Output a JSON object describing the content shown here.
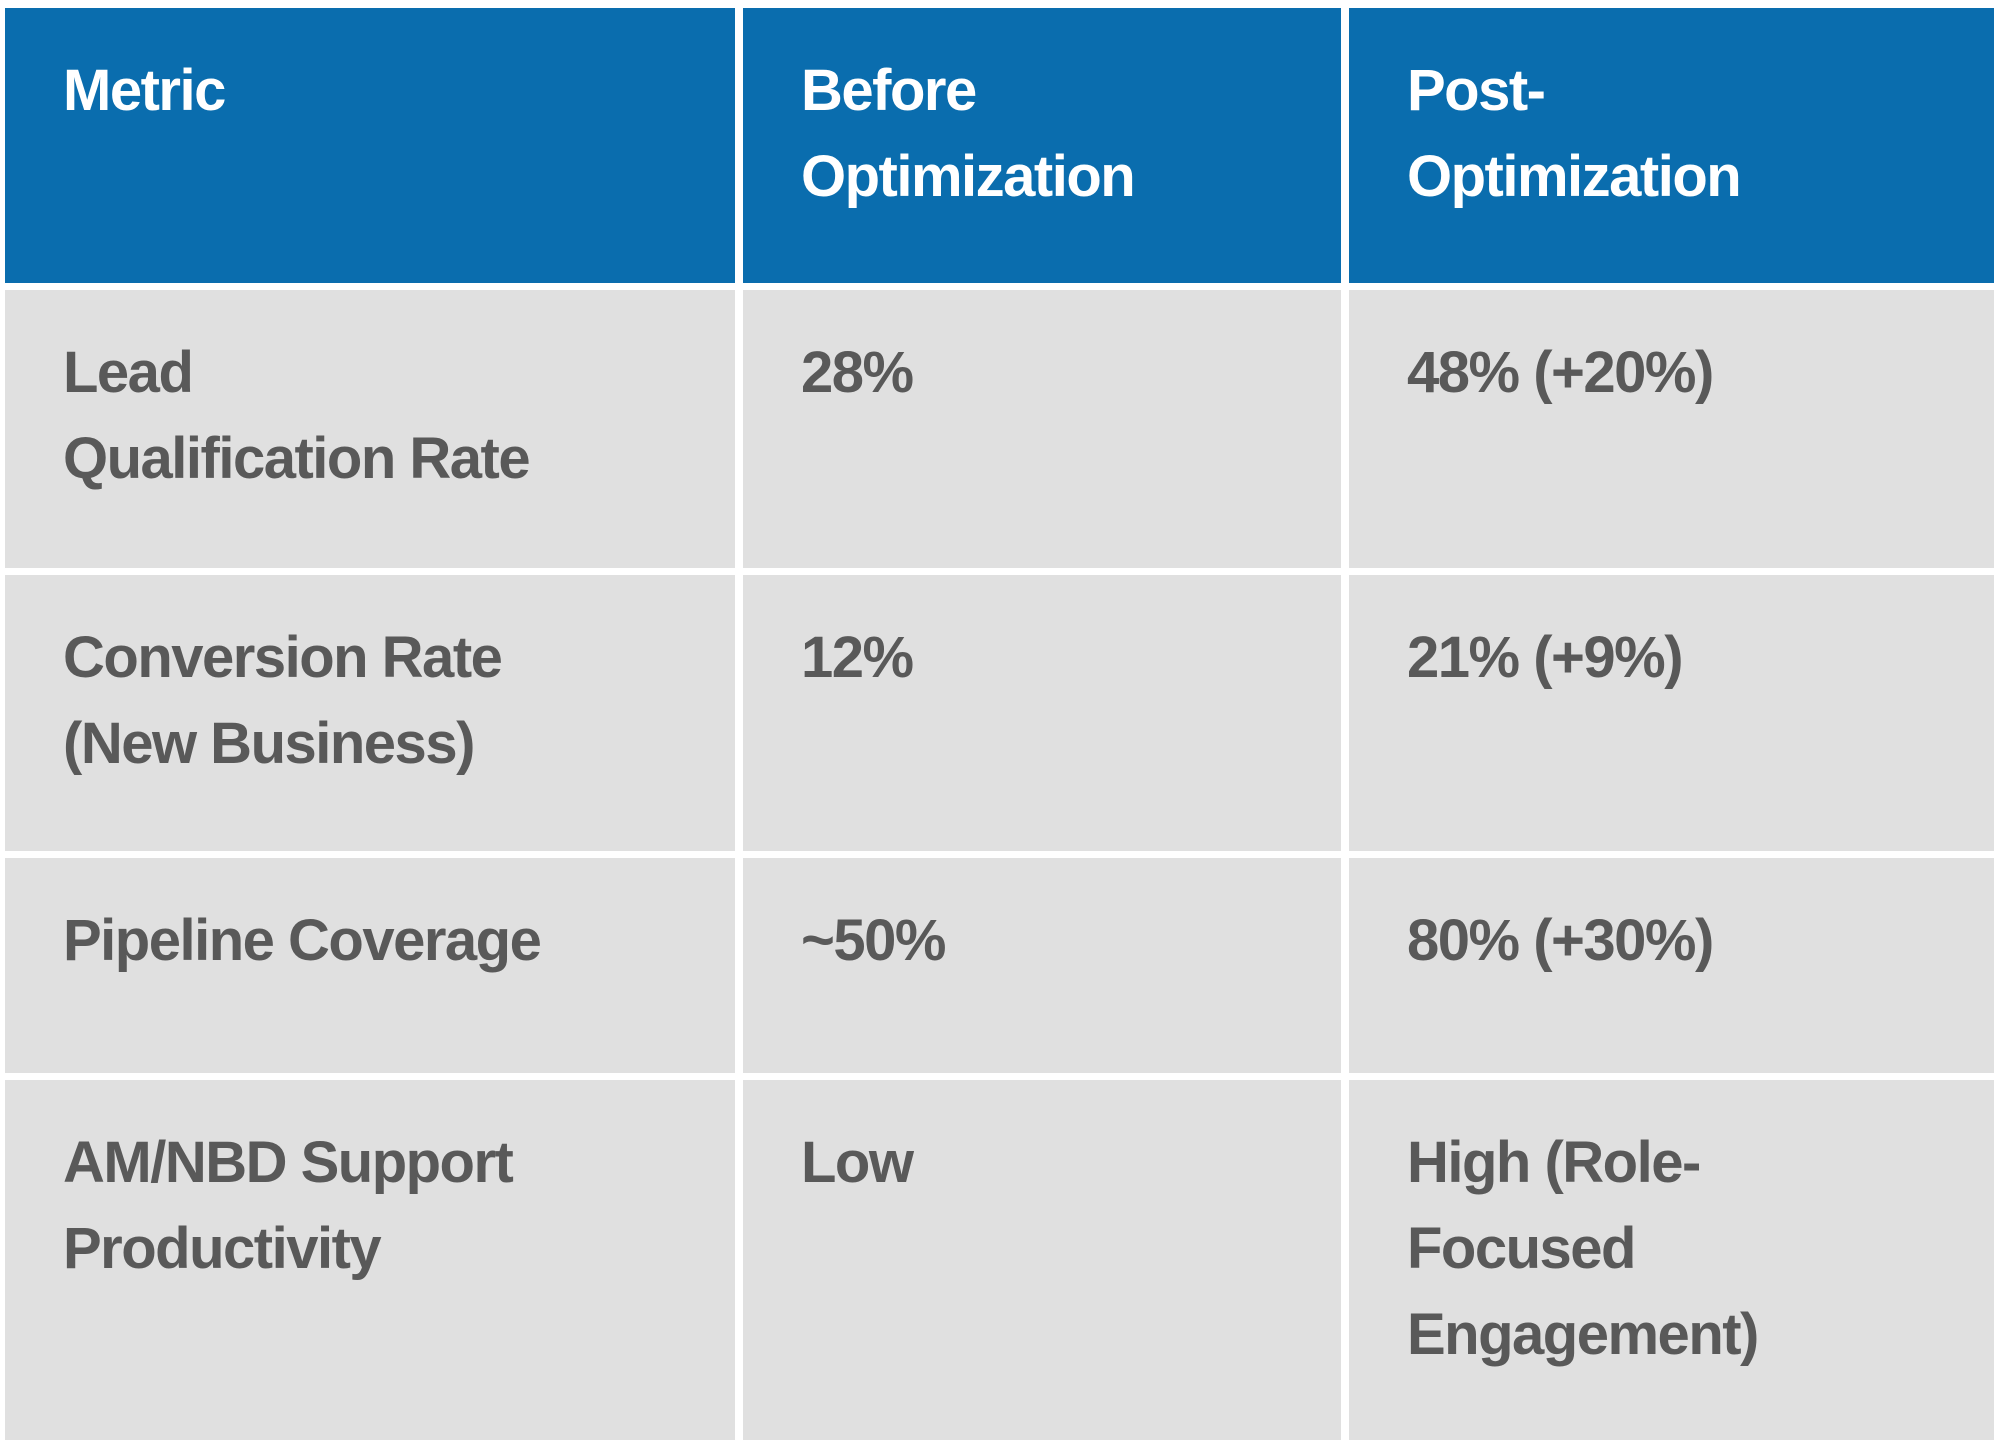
{
  "table": {
    "colors": {
      "header_bg": "#0A6DAE",
      "header_text": "#FFFFFF",
      "body_bg": "#E0E0E0",
      "body_text": "#595959",
      "divider": "#FFFFFF"
    },
    "columns": [
      {
        "label": "Metric"
      },
      {
        "label": "Before\nOptimization"
      },
      {
        "label": "Post-\nOptimization"
      }
    ],
    "rows": [
      {
        "metric": "Lead\nQualification Rate",
        "before": "28%",
        "post": "48% (+20%)"
      },
      {
        "metric": "Conversion Rate\n(New Business)",
        "before": "12%",
        "post": "21% (+9%)"
      },
      {
        "metric": "Pipeline Coverage",
        "before": "~50%",
        "post": "80% (+30%)"
      },
      {
        "metric": "AM/NBD Support\nProductivity",
        "before": "Low",
        "post": "High (Role-\nFocused\nEngagement)"
      }
    ]
  },
  "chart_data": {
    "type": "table",
    "columns": [
      "Metric",
      "Before Optimization",
      "Post-Optimization"
    ],
    "rows": [
      [
        "Lead Qualification Rate",
        "28%",
        "48% (+20%)"
      ],
      [
        "Conversion Rate (New Business)",
        "12%",
        "21% (+9%)"
      ],
      [
        "Pipeline Coverage",
        "~50%",
        "80% (+30%)"
      ],
      [
        "AM/NBD Support Productivity",
        "Low",
        "High (Role-Focused Engagement)"
      ]
    ]
  }
}
